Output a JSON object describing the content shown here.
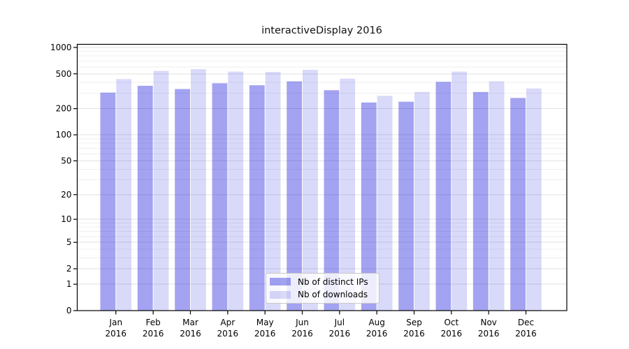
{
  "chart_data": {
    "type": "bar",
    "title": "interactiveDisplay 2016",
    "categories": [
      "Jan",
      "Feb",
      "Mar",
      "Apr",
      "May",
      "Jun",
      "Jul",
      "Aug",
      "Sep",
      "Oct",
      "Nov",
      "Dec"
    ],
    "series": [
      {
        "name": "Nb of distinct IPs",
        "color": "rgba(0,0,215,0.36)",
        "values": [
          305,
          365,
          335,
          390,
          370,
          410,
          325,
          235,
          240,
          405,
          310,
          265
        ]
      },
      {
        "name": "Nb of downloads",
        "color": "rgba(0,0,215,0.15)",
        "values": [
          435,
          540,
          565,
          530,
          525,
          555,
          440,
          280,
          310,
          530,
          410,
          340
        ]
      }
    ],
    "x_axis": {
      "tick_label_line2": "2016"
    },
    "y_axis": {
      "scale": "symlog",
      "ticks": [
        1000,
        500,
        200,
        100,
        50,
        20,
        10,
        5,
        2,
        1,
        0
      ],
      "ylim": [
        0,
        1100
      ],
      "grid": true
    },
    "legend": {
      "position": "lower-center",
      "entries": [
        "Nb of distinct IPs",
        "Nb of downloads"
      ]
    },
    "colors": {
      "grid_major": "#e2e2e2",
      "grid_minor": "#efefef",
      "axis": "#000000",
      "text": "#000000",
      "background": "#ffffff"
    }
  }
}
